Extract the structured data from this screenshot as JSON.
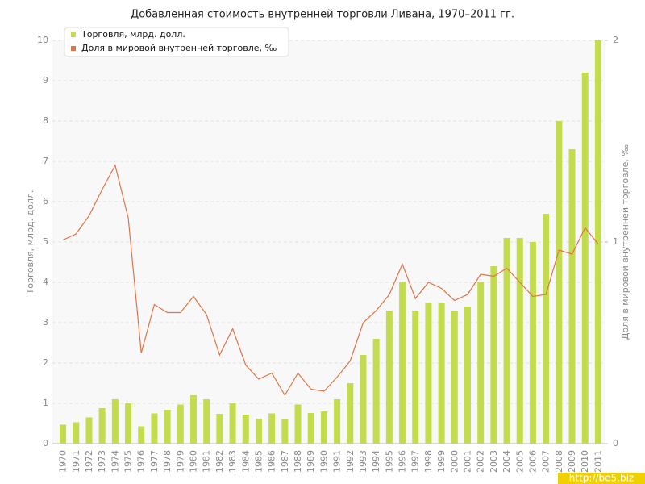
{
  "chart_data": {
    "type": "bar_line",
    "title": "Добавленная стоимость внутренней торговли Ливана, 1970–2011 гг.",
    "ylabel": "Торговля, млрд. долл.",
    "y2label": "Доля в мировой внутренней торговле, ‰",
    "watermark": "http://be5.biz",
    "categories": [
      "1970",
      "1971",
      "1972",
      "1973",
      "1974",
      "1975",
      "1976",
      "1977",
      "1978",
      "1979",
      "1980",
      "1981",
      "1982",
      "1983",
      "1984",
      "1985",
      "1986",
      "1987",
      "1988",
      "1989",
      "1990",
      "1991",
      "1992",
      "1993",
      "1994",
      "1995",
      "1996",
      "1997",
      "1998",
      "1999",
      "2000",
      "2001",
      "2002",
      "2003",
      "2004",
      "2005",
      "2006",
      "2007",
      "2008",
      "2009",
      "2010",
      "2011"
    ],
    "series": [
      {
        "name": "Торговля, млрд. долл.",
        "color": "#c2dc4e",
        "type": "bar",
        "values": [
          0.47,
          0.53,
          0.65,
          0.88,
          1.1,
          1.0,
          0.43,
          0.75,
          0.84,
          0.97,
          1.2,
          1.1,
          0.74,
          1.0,
          0.72,
          0.62,
          0.75,
          0.6,
          0.97,
          0.76,
          0.8,
          1.1,
          1.5,
          2.2,
          2.6,
          3.3,
          4.0,
          3.3,
          3.5,
          3.5,
          3.3,
          3.4,
          4.0,
          4.4,
          5.1,
          5.1,
          5.0,
          5.7,
          8.0,
          7.3,
          9.2,
          10.0
        ]
      },
      {
        "name": "Доля в мировой внутренней торговле, ‰",
        "color": "#e07446",
        "type": "line",
        "axis": "y2",
        "values": [
          1.01,
          1.04,
          1.13,
          1.26,
          1.38,
          1.12,
          0.45,
          0.69,
          0.65,
          0.65,
          0.73,
          0.64,
          0.44,
          0.57,
          0.39,
          0.32,
          0.35,
          0.24,
          0.35,
          0.27,
          0.26,
          0.33,
          0.41,
          0.6,
          0.66,
          0.74,
          0.89,
          0.72,
          0.8,
          0.77,
          0.71,
          0.74,
          0.84,
          0.83,
          0.87,
          0.8,
          0.73,
          0.74,
          0.96,
          0.94,
          1.07,
          0.99
        ]
      }
    ],
    "ylim": [
      0,
      10
    ],
    "yticks": [
      0,
      1,
      2,
      3,
      4,
      5,
      6,
      7,
      8,
      9,
      10
    ],
    "y2lim": [
      0,
      2
    ],
    "y2ticks": [
      0,
      1,
      2
    ],
    "grid": true,
    "legend": "upper left"
  }
}
